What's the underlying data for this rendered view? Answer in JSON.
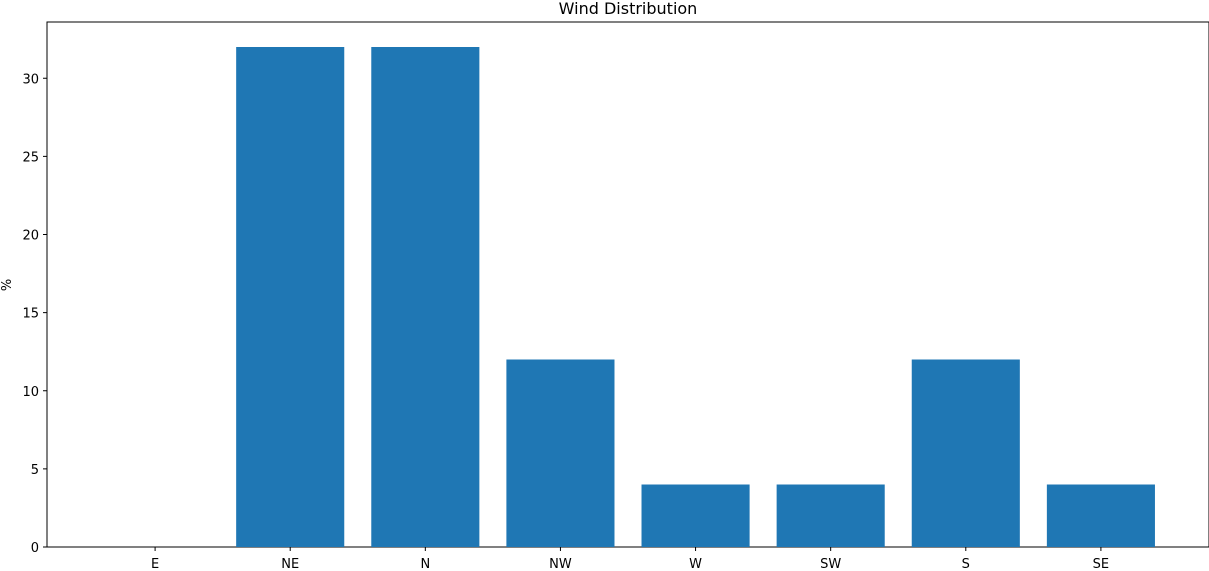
{
  "chart_data": {
    "type": "bar",
    "title": "Wind Distribution",
    "xlabel": "",
    "ylabel": "%",
    "categories": [
      "E",
      "NE",
      "N",
      "NW",
      "W",
      "SW",
      "S",
      "SE"
    ],
    "values": [
      0,
      32,
      32,
      12,
      4,
      4,
      12,
      4
    ],
    "ylim": [
      0,
      33.6
    ],
    "yticks": [
      0,
      5,
      10,
      15,
      20,
      25,
      30
    ],
    "grid": false,
    "colors": {
      "bar": "#1f77b4",
      "axis": "#000000",
      "background": "#ffffff"
    }
  }
}
